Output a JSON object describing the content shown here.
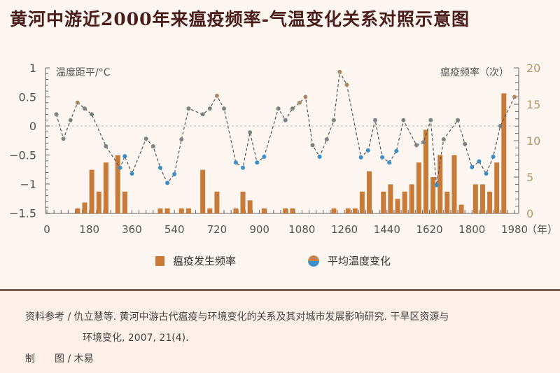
{
  "title": "黄河中游近2000年来瘟疫频率-气温变化关系对照示意图",
  "legend": {
    "bar_label": "瘟疫发生频率",
    "dot_label": "平均温度变化"
  },
  "footer": {
    "reference_line1": "资料参考 / 仇立慧等. 黄河中游古代瘟疫与环境变化的关系及其对城市发展影响研究. 干旱区资源与",
    "reference_line2": "环境变化, 2007, 21(4).",
    "credit_label": "制　　图 / 木易"
  },
  "colors": {
    "bar": "#c87a38",
    "warm_dot": "#a88a68",
    "neutral_dot": "#7c8484",
    "cool_dot": "#3b8fc8",
    "line": "#555555",
    "axis_left": "#666666",
    "axis_right": "#b8966e",
    "background": "#fcf5f0",
    "title": "#4a1c1a"
  },
  "chart_data": {
    "type": "bar+line",
    "title": "黄河中游近2000年来瘟疫频率-气温变化关系对照示意图",
    "xlabel": "（年）",
    "ylabel_left": "温度距平/°C",
    "ylabel_right": "瘟疫频率（次）",
    "x_ticks": [
      0,
      180,
      360,
      540,
      720,
      900,
      1080,
      1260,
      1440,
      1620,
      1800,
      1980
    ],
    "xlim": [
      0,
      1980
    ],
    "ylim_left": [
      -1.5,
      1
    ],
    "y_ticks_left": [
      "1",
      "0.5",
      "0",
      "−0.5",
      "−1",
      "−1.5"
    ],
    "ylim_right": [
      0,
      20
    ],
    "y_ticks_right": [
      "20",
      "15",
      "10",
      "5",
      "0"
    ],
    "legend": [
      "瘟疫发生频率",
      "平均温度变化"
    ],
    "legend_position": "bottom",
    "grid": false,
    "zero_reference_line": true,
    "series": [
      {
        "name": "瘟疫发生频率",
        "type": "bar",
        "axis": "right",
        "x": [
          130,
          160,
          190,
          220,
          250,
          300,
          330,
          480,
          510,
          570,
          600,
          660,
          690,
          720,
          800,
          830,
          860,
          920,
          1010,
          1040,
          1215,
          1275,
          1305,
          1335,
          1365,
          1425,
          1455,
          1485,
          1515,
          1545,
          1575,
          1605,
          1635,
          1665,
          1695,
          1725,
          1755,
          1815,
          1845,
          1875,
          1905,
          1935
        ],
        "values": [
          0.7,
          1.5,
          6.0,
          3.0,
          7.0,
          8.0,
          3.0,
          0.7,
          0.7,
          0.7,
          0.7,
          6.0,
          0.7,
          3.0,
          0.7,
          3.0,
          1.8,
          0.7,
          0.7,
          0.7,
          0.7,
          0.7,
          0.7,
          3.0,
          5.8,
          3.0,
          4.0,
          2.0,
          3.0,
          4.0,
          7.0,
          11.5,
          5.0,
          8.0,
          3.0,
          8.0,
          1.2,
          4.0,
          4.0,
          3.0,
          7.0,
          16.5
        ]
      },
      {
        "name": "平均温度变化",
        "type": "line",
        "axis": "left",
        "x": [
          40,
          70,
          100,
          130,
          160,
          190,
          250,
          310,
          330,
          360,
          420,
          450,
          480,
          510,
          540,
          570,
          600,
          660,
          690,
          720,
          750,
          800,
          830,
          860,
          890,
          920,
          980,
          1010,
          1040,
          1070,
          1095,
          1125,
          1155,
          1185,
          1215,
          1240,
          1270,
          1330,
          1360,
          1390,
          1420,
          1450,
          1480,
          1510,
          1565,
          1595,
          1625,
          1650,
          1680,
          1740,
          1770,
          1800,
          1830,
          1860,
          1890,
          1920,
          1980
        ],
        "values": [
          0.2,
          -0.22,
          0.1,
          0.4,
          0.3,
          0.2,
          -0.35,
          -0.72,
          -0.52,
          -0.82,
          -0.22,
          -0.35,
          -0.72,
          -0.98,
          -0.83,
          -0.23,
          0.3,
          0.2,
          0.3,
          0.52,
          0.3,
          -0.63,
          -0.72,
          -0.11,
          -0.63,
          -0.53,
          0.3,
          0.1,
          0.3,
          0.4,
          0.5,
          -0.33,
          -0.53,
          -0.23,
          0.1,
          0.93,
          0.71,
          -0.54,
          -0.42,
          0.1,
          -0.54,
          -0.63,
          -0.43,
          0.1,
          -0.33,
          -0.28,
          0.1,
          -1.02,
          -0.23,
          0.1,
          -0.31,
          -0.71,
          -0.61,
          -0.82,
          -0.53,
          0.0,
          0.5
        ]
      }
    ]
  }
}
